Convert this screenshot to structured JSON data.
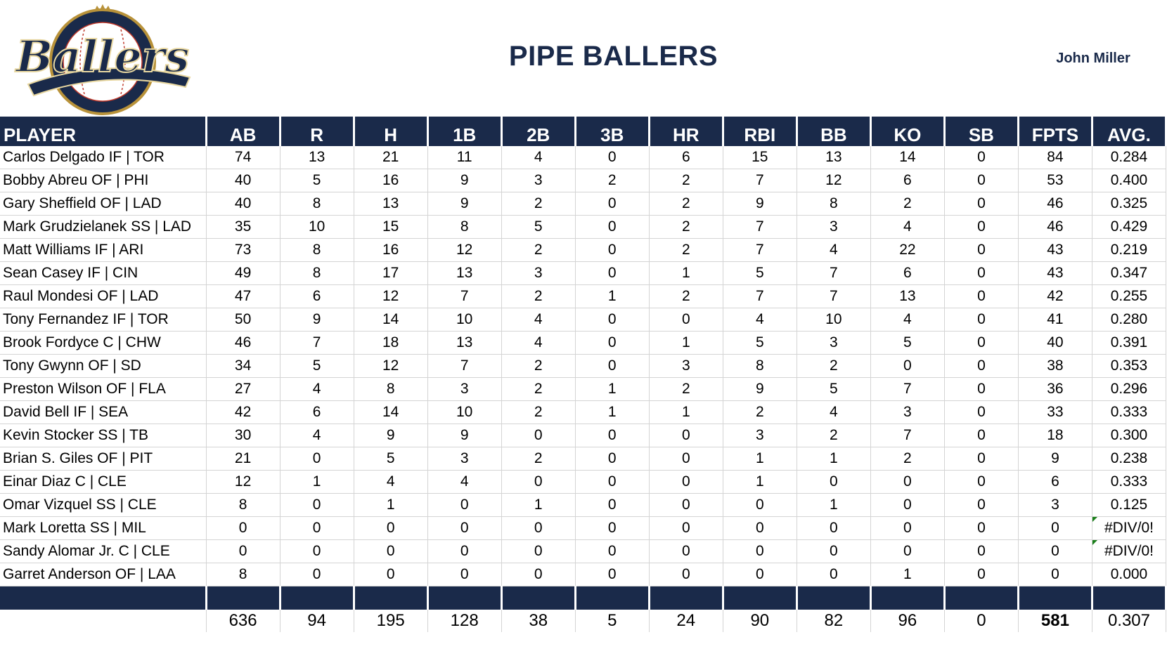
{
  "header": {
    "title": "PIPE BALLERS",
    "owner": "John Miller",
    "logo_text": "Ballers"
  },
  "colors": {
    "navy": "#1a2a4a",
    "gold": "#b8923a"
  },
  "table": {
    "columns": [
      "PLAYER",
      "AB",
      "R",
      "H",
      "1B",
      "2B",
      "3B",
      "HR",
      "RBI",
      "BB",
      "KO",
      "SB",
      "FPTS",
      "AVG."
    ],
    "rows": [
      [
        "Carlos Delgado IF | TOR",
        "74",
        "13",
        "21",
        "11",
        "4",
        "0",
        "6",
        "15",
        "13",
        "14",
        "0",
        "84",
        "0.284"
      ],
      [
        "Bobby Abreu OF | PHI",
        "40",
        "5",
        "16",
        "9",
        "3",
        "2",
        "2",
        "7",
        "12",
        "6",
        "0",
        "53",
        "0.400"
      ],
      [
        "Gary Sheffield OF | LAD",
        "40",
        "8",
        "13",
        "9",
        "2",
        "0",
        "2",
        "9",
        "8",
        "2",
        "0",
        "46",
        "0.325"
      ],
      [
        "Mark Grudzielanek SS | LAD",
        "35",
        "10",
        "15",
        "8",
        "5",
        "0",
        "2",
        "7",
        "3",
        "4",
        "0",
        "46",
        "0.429"
      ],
      [
        "Matt Williams IF | ARI",
        "73",
        "8",
        "16",
        "12",
        "2",
        "0",
        "2",
        "7",
        "4",
        "22",
        "0",
        "43",
        "0.219"
      ],
      [
        "Sean Casey IF | CIN",
        "49",
        "8",
        "17",
        "13",
        "3",
        "0",
        "1",
        "5",
        "7",
        "6",
        "0",
        "43",
        "0.347"
      ],
      [
        "Raul Mondesi OF | LAD",
        "47",
        "6",
        "12",
        "7",
        "2",
        "1",
        "2",
        "7",
        "7",
        "13",
        "0",
        "42",
        "0.255"
      ],
      [
        "Tony Fernandez IF | TOR",
        "50",
        "9",
        "14",
        "10",
        "4",
        "0",
        "0",
        "4",
        "10",
        "4",
        "0",
        "41",
        "0.280"
      ],
      [
        "Brook Fordyce C | CHW",
        "46",
        "7",
        "18",
        "13",
        "4",
        "0",
        "1",
        "5",
        "3",
        "5",
        "0",
        "40",
        "0.391"
      ],
      [
        "Tony Gwynn OF | SD",
        "34",
        "5",
        "12",
        "7",
        "2",
        "0",
        "3",
        "8",
        "2",
        "0",
        "0",
        "38",
        "0.353"
      ],
      [
        "Preston Wilson OF | FLA",
        "27",
        "4",
        "8",
        "3",
        "2",
        "1",
        "2",
        "9",
        "5",
        "7",
        "0",
        "36",
        "0.296"
      ],
      [
        "David Bell IF | SEA",
        "42",
        "6",
        "14",
        "10",
        "2",
        "1",
        "1",
        "2",
        "4",
        "3",
        "0",
        "33",
        "0.333"
      ],
      [
        "Kevin Stocker SS | TB",
        "30",
        "4",
        "9",
        "9",
        "0",
        "0",
        "0",
        "3",
        "2",
        "7",
        "0",
        "18",
        "0.300"
      ],
      [
        "Brian S. Giles OF | PIT",
        "21",
        "0",
        "5",
        "3",
        "2",
        "0",
        "0",
        "1",
        "1",
        "2",
        "0",
        "9",
        "0.238"
      ],
      [
        "Einar Diaz C | CLE",
        "12",
        "1",
        "4",
        "4",
        "0",
        "0",
        "0",
        "1",
        "0",
        "0",
        "0",
        "6",
        "0.333"
      ],
      [
        "Omar Vizquel SS | CLE",
        "8",
        "0",
        "1",
        "0",
        "1",
        "0",
        "0",
        "0",
        "1",
        "0",
        "0",
        "3",
        "0.125"
      ],
      [
        "Mark Loretta SS | MIL",
        "0",
        "0",
        "0",
        "0",
        "0",
        "0",
        "0",
        "0",
        "0",
        "0",
        "0",
        "0",
        "#DIV/0!"
      ],
      [
        "Sandy Alomar Jr. C | CLE",
        "0",
        "0",
        "0",
        "0",
        "0",
        "0",
        "0",
        "0",
        "0",
        "0",
        "0",
        "0",
        "#DIV/0!"
      ],
      [
        "Garret Anderson OF | LAA",
        "8",
        "0",
        "0",
        "0",
        "0",
        "0",
        "0",
        "0",
        "0",
        "1",
        "0",
        "0",
        "0.000"
      ]
    ],
    "totals": [
      "",
      "636",
      "94",
      "195",
      "128",
      "38",
      "5",
      "24",
      "90",
      "82",
      "96",
      "0",
      "581",
      "0.307"
    ]
  }
}
